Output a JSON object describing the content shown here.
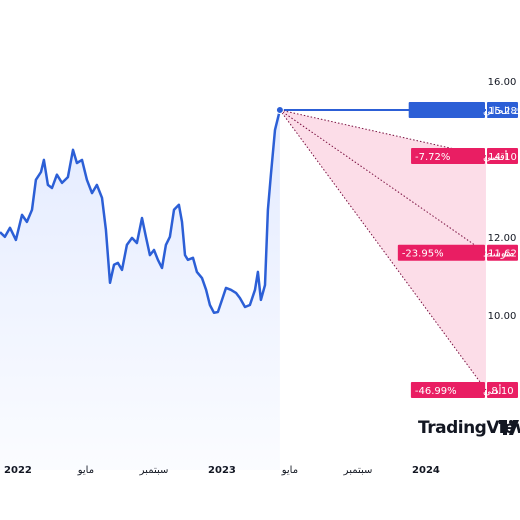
{
  "chart_data": {
    "type": "line",
    "x": [
      2021.912,
      2021.936,
      2021.961,
      2021.99,
      2022.02,
      2022.044,
      2022.069,
      2022.088,
      2022.113,
      2022.127,
      2022.147,
      2022.167,
      2022.191,
      2022.216,
      2022.245,
      2022.27,
      2022.289,
      2022.314,
      2022.338,
      2022.363,
      2022.387,
      2022.412,
      2022.431,
      2022.451,
      2022.471,
      2022.49,
      2022.51,
      2022.534,
      2022.559,
      2022.583,
      2022.608,
      2022.627,
      2022.647,
      2022.667,
      2022.686,
      2022.706,
      2022.725,
      2022.745,
      2022.765,
      2022.789,
      2022.804,
      2022.819,
      2022.833,
      2022.858,
      2022.877,
      2022.902,
      2022.922,
      2022.941,
      2022.961,
      2022.98,
      2023.0,
      2023.02,
      2023.044,
      2023.069,
      2023.088,
      2023.113,
      2023.137,
      2023.162,
      2023.176,
      2023.191,
      2023.211,
      2023.225,
      2023.24,
      2023.26,
      2023.284
    ],
    "values": [
      12.15,
      12.03,
      12.26,
      11.95,
      12.59,
      12.41,
      12.72,
      13.49,
      13.69,
      14.0,
      13.36,
      13.28,
      13.62,
      13.41,
      13.56,
      14.26,
      13.92,
      14.0,
      13.49,
      13.15,
      13.36,
      13.03,
      12.21,
      10.85,
      11.31,
      11.36,
      11.18,
      11.82,
      12.0,
      11.87,
      12.51,
      12.03,
      11.56,
      11.69,
      11.44,
      11.23,
      11.82,
      12.03,
      12.72,
      12.85,
      12.41,
      11.56,
      11.44,
      11.49,
      11.13,
      10.97,
      10.67,
      10.28,
      10.08,
      10.1,
      10.41,
      10.72,
      10.67,
      10.59,
      10.46,
      10.23,
      10.28,
      10.67,
      11.13,
      10.41,
      10.79,
      12.72,
      13.62,
      14.77,
      15.28
    ],
    "color": "#2c5fd6",
    "xlim": [
      2021.912,
      2024.304
    ],
    "xticks": [
      2022,
      {
        "value": 2022.333,
        "label": "مايو"
      },
      {
        "value": 2022.667,
        "label": "سبتمبر"
      },
      2023,
      {
        "value": 2023.333,
        "label": "مايو"
      },
      {
        "value": 2023.667,
        "label": "سبتمبر"
      },
      2024
    ],
    "ylim": [
      6.05,
      18.1
    ],
    "yticks": [
      {
        "value": 16,
        "label": "16.00"
      },
      {
        "value": 12,
        "label": "12.00"
      },
      {
        "value": 10,
        "label": "10.00"
      }
    ],
    "current": {
      "name": "الاشتراك الحالي",
      "value": 15.28
    },
    "forecast": {
      "x": 2024.294,
      "color": "#e91e63",
      "targets": [
        {
          "name": "أقصى",
          "change": "-7.72%",
          "value": 14.1,
          "value_label": "14.10"
        },
        {
          "name": "متوسط",
          "change": "-23.95%",
          "value": 11.62,
          "value_label": "11.62"
        },
        {
          "name": "أدنى",
          "change": "-46.99%",
          "value": 8.1,
          "value_label": "8.10"
        }
      ]
    },
    "brand": "TradingView"
  }
}
